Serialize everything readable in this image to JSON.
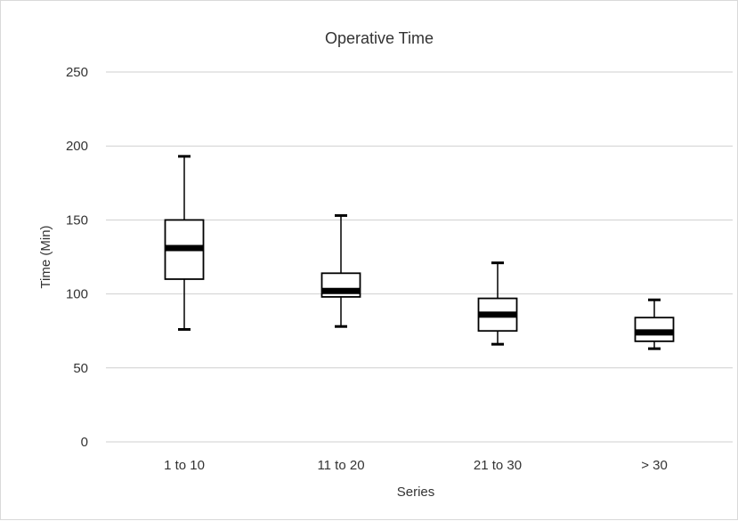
{
  "chart_data": {
    "type": "boxplot",
    "title": "Operative Time",
    "xlabel": "Series",
    "ylabel": "Time (Min)",
    "ylim": [
      0,
      250
    ],
    "yticks": [
      0,
      50,
      100,
      150,
      200,
      250
    ],
    "grid": true,
    "categories": [
      "1 to 10",
      "11 to 20",
      "21 to 30",
      "> 30"
    ],
    "boxes": [
      {
        "category": "1 to 10",
        "min": 76,
        "q1": 110,
        "median": 131,
        "q3": 150,
        "max": 193
      },
      {
        "category": "11 to 20",
        "min": 78,
        "q1": 98,
        "median": 102,
        "q3": 114,
        "max": 153
      },
      {
        "category": "21 to 30",
        "min": 66,
        "q1": 75,
        "median": 86,
        "q3": 97,
        "max": 121
      },
      {
        "category": "> 30",
        "min": 63,
        "q1": 68,
        "median": 74,
        "q3": 84,
        "max": 96
      }
    ]
  }
}
